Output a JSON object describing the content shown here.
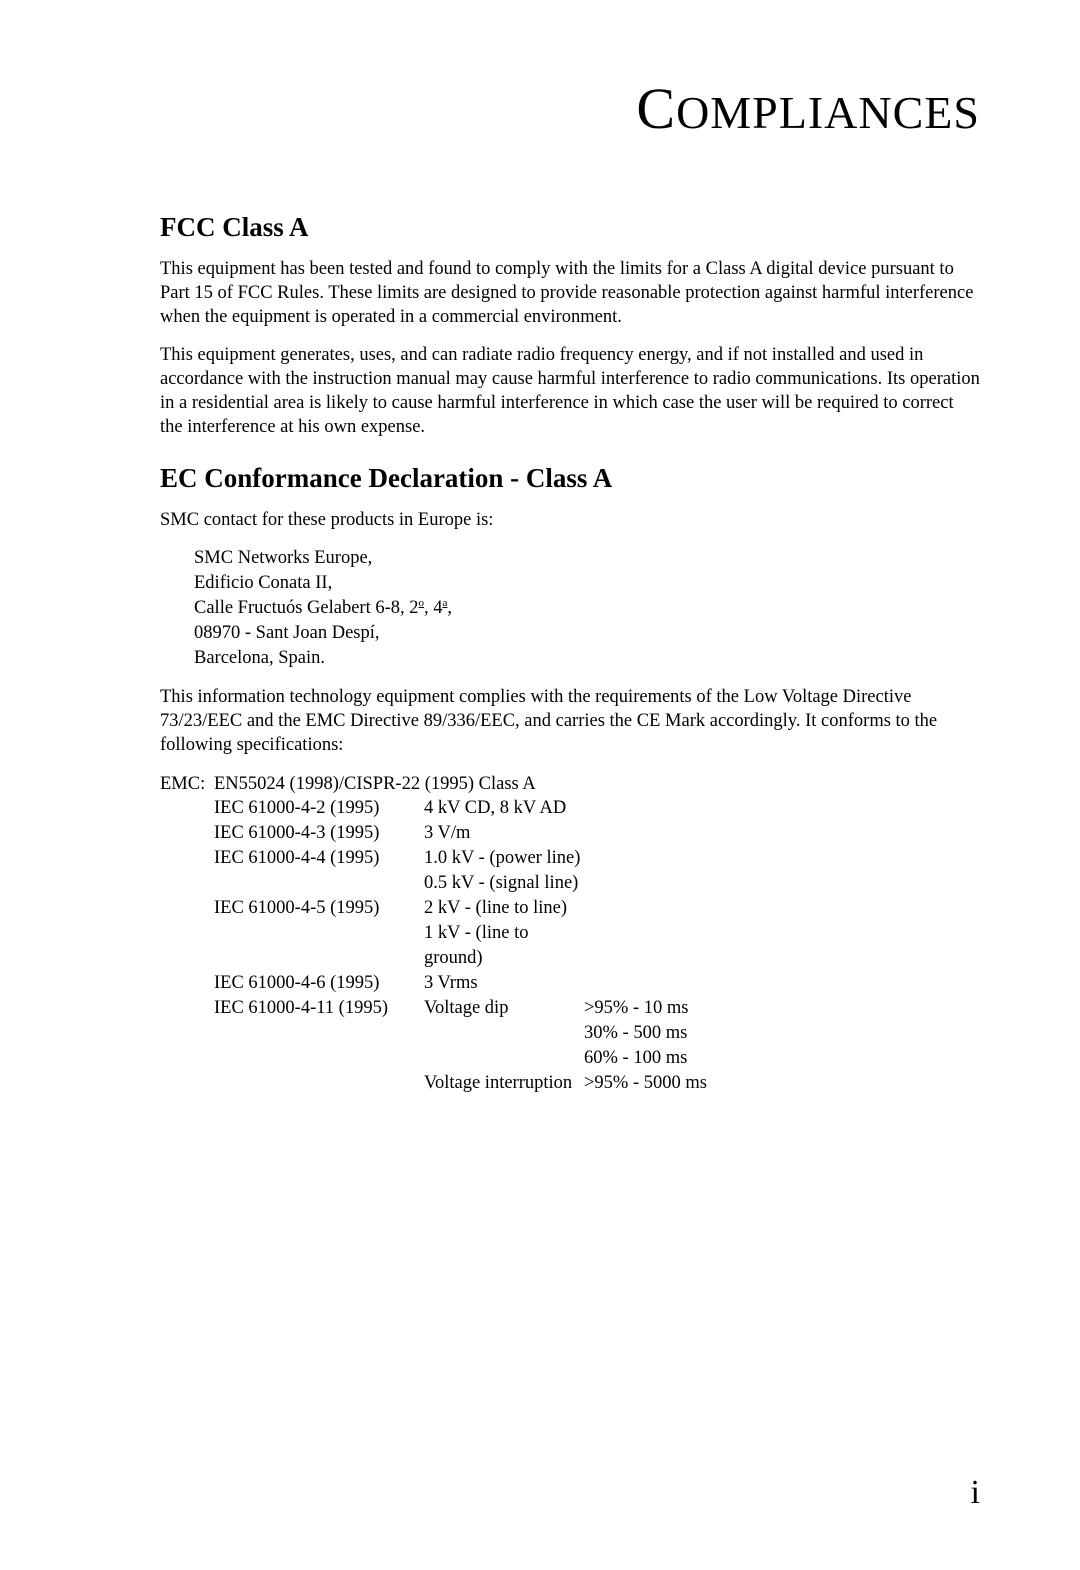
{
  "page": {
    "chapter_title_initial": "C",
    "chapter_title_rest": "OMPLIANCES",
    "page_number": "i",
    "colors": {
      "background": "#ffffff",
      "text": "#000000"
    },
    "fonts": {
      "body_family": "Georgia, Times New Roman, serif",
      "body_size_pt": 14,
      "h2_size_pt": 20,
      "chapter_title_size_pt": 34
    }
  },
  "sections": {
    "fcc": {
      "heading": "FCC Class A",
      "para1": "This equipment has been tested and found to comply with the limits for a Class A digital device pursuant to Part 15 of FCC Rules. These limits are designed to provide reasonable protection against harmful interference when the equipment is operated in a commercial environment.",
      "para2": "This equipment generates, uses, and can radiate radio frequency energy, and if not installed and used in accordance with the instruction manual may cause harmful interference to radio communications. Its operation in a residential area is likely to cause harmful interference in which case the user will be required to correct the interference at his own expense."
    },
    "ec": {
      "heading": "EC Conformance Declaration - Class A",
      "intro": "SMC contact for these products in Europe is:",
      "address": {
        "l1": "SMC Networks Europe,",
        "l2": "Edificio Conata II,",
        "l3_pre": "Calle Fructuós Gelabert 6-8, 2",
        "l3_sup1": "o",
        "l3_mid": ", 4",
        "l3_sup2": "a",
        "l3_post": ",",
        "l4": "08970 - Sant Joan Despí,",
        "l5": "Barcelona, Spain."
      },
      "para_after": "This information technology equipment complies with the requirements of the Low Voltage Directive 73/23/EEC and the EMC Directive 89/336/EEC, and carries the CE Mark accordingly. It conforms to the following specifications:",
      "emc_label": "EMC:",
      "emc_header": "EN55024 (1998)/CISPR-22 (1995) Class A",
      "rows": [
        {
          "std": "IEC 61000-4-2 (1995)",
          "v1": "4 kV CD, 8 kV AD",
          "v2": ""
        },
        {
          "std": "IEC 61000-4-3 (1995)",
          "v1": "3 V/m",
          "v2": ""
        },
        {
          "std": "IEC 61000-4-4 (1995)",
          "v1": "1.0 kV - (power line)",
          "v2": ""
        },
        {
          "std": "",
          "v1": "0.5 kV - (signal line)",
          "v2": ""
        },
        {
          "std": "IEC 61000-4-5 (1995)",
          "v1": "2 kV - (line to line)",
          "v2": ""
        },
        {
          "std": "",
          "v1": "1 kV - (line to ground)",
          "v2": ""
        },
        {
          "std": "IEC 61000-4-6 (1995)",
          "v1": "3 Vrms",
          "v2": ""
        },
        {
          "std": "IEC 61000-4-11 (1995)",
          "v1": "Voltage dip",
          "v2": ">95% - 10 ms"
        },
        {
          "std": "",
          "v1": "",
          "v2": "30% - 500 ms"
        },
        {
          "std": "",
          "v1": "",
          "v2": "60% - 100 ms"
        },
        {
          "std": "",
          "v1": "Voltage interruption",
          "v2": ">95% - 5000 ms"
        }
      ]
    }
  }
}
